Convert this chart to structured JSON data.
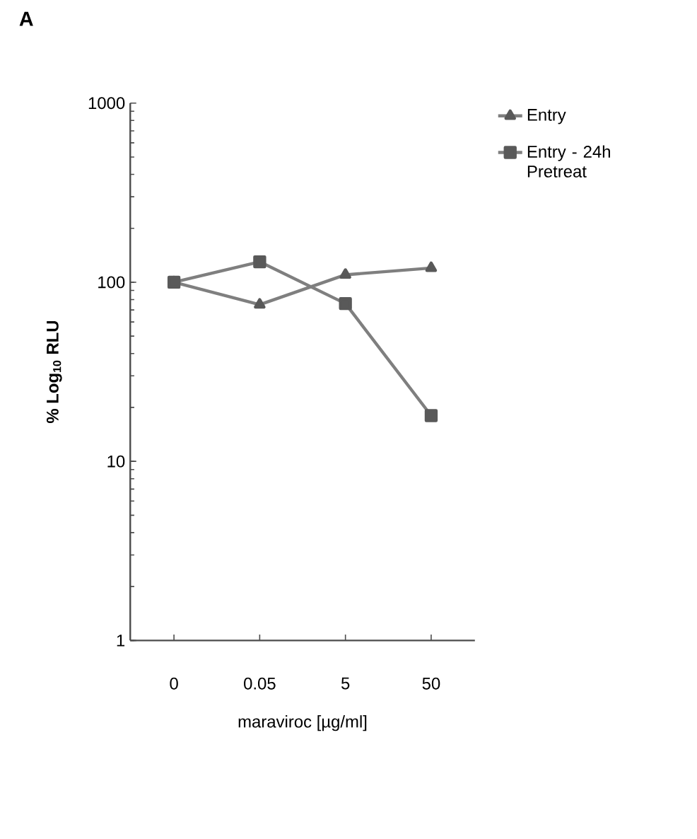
{
  "chart_data": {
    "type": "line",
    "title": "A",
    "xlabel": "maraviroc [µg/ml]",
    "ylabel": "% Log$_{10}$ RLU",
    "categories": [
      "0",
      "0.05",
      "5",
      "50"
    ],
    "series": [
      {
        "name": "Entry",
        "color": "#7f7f7f",
        "marker": "triangle",
        "values": [
          100,
          75,
          110,
          120
        ]
      },
      {
        "name": "Entry - 24h Pretreat",
        "color": "#7f7f7f",
        "marker": "square",
        "values": [
          100,
          130,
          76,
          18
        ]
      }
    ],
    "log": "y",
    "ylim": [
      1,
      1000
    ],
    "yticks": [
      1,
      10,
      100,
      1000
    ],
    "legend": "top right",
    "grid": false,
    "line_style": "solid"
  }
}
